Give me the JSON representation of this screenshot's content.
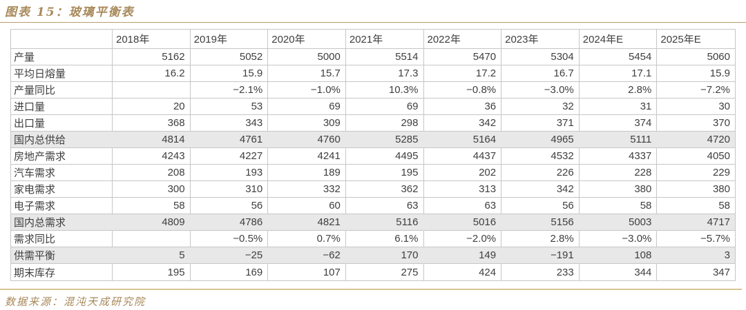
{
  "colors": {
    "accent_gold": "#a8895a",
    "rule_gold": "#b89c6e",
    "highlight_row_bg": "#e8e8e8",
    "table_border": "#c6c6c6",
    "text": "#3e3e3e"
  },
  "figure": {
    "title": "图表  15：玻璃平衡表",
    "source": "数据来源：混沌天成研究院"
  },
  "chart_data": {
    "type": "table",
    "title": "图表 15: 玻璃平衡表",
    "source": "数据来源: 混沌天成研究院",
    "columns": [
      "",
      "2018年",
      "2019年",
      "2020年",
      "2021年",
      "2022年",
      "2023年",
      "2024年E",
      "2025年E"
    ],
    "rows": [
      {
        "label": "产量",
        "highlight": false,
        "values": [
          "5162",
          "5052",
          "5000",
          "5514",
          "5470",
          "5304",
          "5454",
          "5060"
        ]
      },
      {
        "label": "平均日熔量",
        "highlight": false,
        "values": [
          "16.2",
          "15.9",
          "15.7",
          "17.3",
          "17.2",
          "16.7",
          "17.1",
          "15.9"
        ]
      },
      {
        "label": "产量同比",
        "highlight": false,
        "values": [
          "",
          "−2.1%",
          "−1.0%",
          "10.3%",
          "−0.8%",
          "−3.0%",
          "2.8%",
          "−7.2%"
        ]
      },
      {
        "label": "进口量",
        "highlight": false,
        "values": [
          "20",
          "53",
          "69",
          "69",
          "36",
          "32",
          "31",
          "30"
        ]
      },
      {
        "label": "出口量",
        "highlight": false,
        "values": [
          "368",
          "343",
          "309",
          "298",
          "342",
          "371",
          "374",
          "370"
        ]
      },
      {
        "label": "国内总供给",
        "highlight": true,
        "values": [
          "4814",
          "4761",
          "4760",
          "5285",
          "5164",
          "4965",
          "5111",
          "4720"
        ]
      },
      {
        "label": "房地产需求",
        "highlight": false,
        "values": [
          "4243",
          "4227",
          "4241",
          "4495",
          "4437",
          "4532",
          "4337",
          "4050"
        ]
      },
      {
        "label": "汽车需求",
        "highlight": false,
        "values": [
          "208",
          "193",
          "189",
          "195",
          "202",
          "226",
          "228",
          "229"
        ]
      },
      {
        "label": "家电需求",
        "highlight": false,
        "values": [
          "300",
          "310",
          "332",
          "362",
          "313",
          "342",
          "380",
          "380"
        ]
      },
      {
        "label": "电子需求",
        "highlight": false,
        "values": [
          "58",
          "56",
          "60",
          "63",
          "63",
          "56",
          "58",
          "58"
        ]
      },
      {
        "label": "国内总需求",
        "highlight": true,
        "values": [
          "4809",
          "4786",
          "4821",
          "5116",
          "5016",
          "5156",
          "5003",
          "4717"
        ]
      },
      {
        "label": "需求同比",
        "highlight": false,
        "values": [
          "",
          "−0.5%",
          "0.7%",
          "6.1%",
          "−2.0%",
          "2.8%",
          "−3.0%",
          "−5.7%"
        ]
      },
      {
        "label": "供需平衡",
        "highlight": true,
        "values": [
          "5",
          "−25",
          "−62",
          "170",
          "149",
          "−191",
          "108",
          "3"
        ]
      },
      {
        "label": "期末库存",
        "highlight": false,
        "values": [
          "195",
          "169",
          "107",
          "275",
          "424",
          "233",
          "344",
          "347"
        ]
      }
    ]
  }
}
